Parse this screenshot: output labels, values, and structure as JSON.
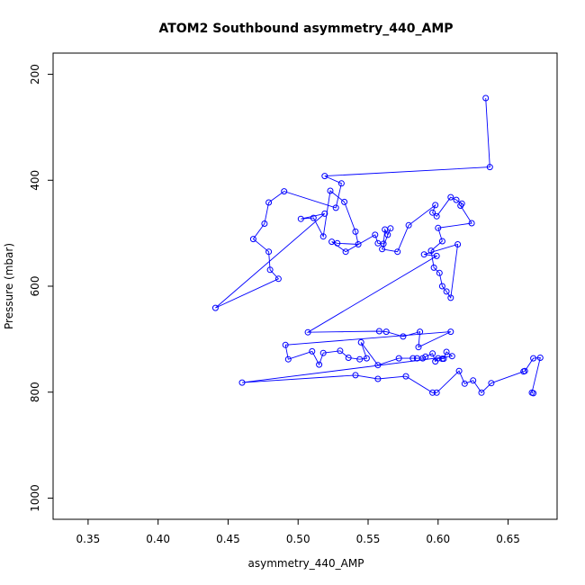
{
  "chart_data": {
    "type": "line",
    "title": "ATOM2 Southbound asymmetry_440_AMP",
    "xlabel": "asymmetry_440_AMP",
    "ylabel": "Pressure (mbar)",
    "xlim": [
      0.325,
      0.685
    ],
    "ylim": [
      1040,
      160
    ],
    "y_reversed": true,
    "x_ticks": [
      0.35,
      0.4,
      0.45,
      0.5,
      0.55,
      0.6,
      0.65
    ],
    "x_tick_labels": [
      "0.35",
      "0.40",
      "0.45",
      "0.50",
      "0.55",
      "0.60",
      "0.65"
    ],
    "y_ticks": [
      200,
      400,
      600,
      800,
      1000
    ],
    "y_tick_labels": [
      "200",
      "400",
      "600",
      "800",
      "1000"
    ],
    "grid": false,
    "series_color": "#0000ff",
    "marker": "open-circle",
    "points": [
      [
        0.634,
        245
      ],
      [
        0.637,
        375
      ],
      [
        0.519,
        392
      ],
      [
        0.531,
        406
      ],
      [
        0.527,
        452
      ],
      [
        0.49,
        421
      ],
      [
        0.479,
        442
      ],
      [
        0.476,
        482
      ],
      [
        0.468,
        511
      ],
      [
        0.479,
        535
      ],
      [
        0.48,
        569
      ],
      [
        0.486,
        586
      ],
      [
        0.441,
        641
      ],
      [
        0.519,
        463
      ],
      [
        0.502,
        473
      ],
      [
        0.511,
        471
      ],
      [
        0.518,
        506
      ],
      [
        0.523,
        420
      ],
      [
        0.533,
        441
      ],
      [
        0.541,
        497
      ],
      [
        0.543,
        521
      ],
      [
        0.528,
        519
      ],
      [
        0.524,
        516
      ],
      [
        0.534,
        535
      ],
      [
        0.555,
        503
      ],
      [
        0.557,
        519
      ],
      [
        0.561,
        520
      ],
      [
        0.562,
        493
      ],
      [
        0.564,
        503
      ],
      [
        0.566,
        491
      ],
      [
        0.56,
        530
      ],
      [
        0.571,
        535
      ],
      [
        0.579,
        485
      ],
      [
        0.598,
        447
      ],
      [
        0.596,
        461
      ],
      [
        0.599,
        468
      ],
      [
        0.609,
        432
      ],
      [
        0.613,
        437
      ],
      [
        0.617,
        444
      ],
      [
        0.616,
        448
      ],
      [
        0.624,
        481
      ],
      [
        0.6,
        490
      ],
      [
        0.603,
        515
      ],
      [
        0.595,
        533
      ],
      [
        0.597,
        565
      ],
      [
        0.601,
        575
      ],
      [
        0.603,
        600
      ],
      [
        0.606,
        610
      ],
      [
        0.609,
        622
      ],
      [
        0.614,
        521
      ],
      [
        0.59,
        540
      ],
      [
        0.599,
        543
      ],
      [
        0.507,
        687
      ],
      [
        0.558,
        685
      ],
      [
        0.563,
        686
      ],
      [
        0.575,
        695
      ],
      [
        0.587,
        686
      ],
      [
        0.586,
        715
      ],
      [
        0.609,
        686
      ],
      [
        0.491,
        711
      ],
      [
        0.493,
        738
      ],
      [
        0.51,
        723
      ],
      [
        0.515,
        748
      ],
      [
        0.518,
        726
      ],
      [
        0.53,
        722
      ],
      [
        0.536,
        735
      ],
      [
        0.544,
        738
      ],
      [
        0.549,
        736
      ],
      [
        0.545,
        706
      ],
      [
        0.557,
        749
      ],
      [
        0.572,
        736
      ],
      [
        0.582,
        736
      ],
      [
        0.585,
        736
      ],
      [
        0.589,
        736
      ],
      [
        0.591,
        733
      ],
      [
        0.596,
        727
      ],
      [
        0.598,
        742
      ],
      [
        0.6,
        736
      ],
      [
        0.603,
        737
      ],
      [
        0.604,
        737
      ],
      [
        0.606,
        724
      ],
      [
        0.61,
        732
      ],
      [
        0.46,
        782
      ],
      [
        0.541,
        768
      ],
      [
        0.557,
        775
      ],
      [
        0.577,
        770
      ],
      [
        0.596,
        801
      ],
      [
        0.599,
        801
      ],
      [
        0.615,
        760
      ],
      [
        0.619,
        784
      ],
      [
        0.625,
        778
      ],
      [
        0.631,
        801
      ],
      [
        0.638,
        783
      ],
      [
        0.661,
        761
      ],
      [
        0.662,
        760
      ],
      [
        0.668,
        736
      ],
      [
        0.673,
        735
      ],
      [
        0.667,
        801
      ],
      [
        0.668,
        802
      ]
    ]
  }
}
